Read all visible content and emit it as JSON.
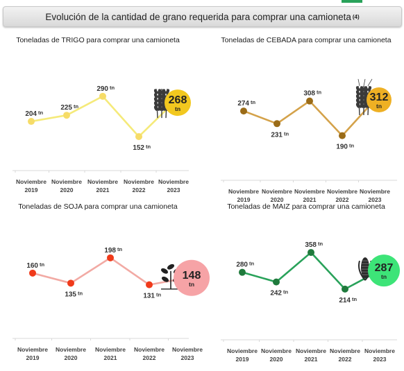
{
  "header": {
    "title": "Evolución de la cantidad de grano requerida para comprar una camioneta",
    "note": "(4)"
  },
  "colors": {
    "trigo_line": "#f5ea7a",
    "trigo_point": "#f6dc68",
    "trigo_badge": "#f2c81f",
    "cebada_line": "#d4a24a",
    "cebada_point": "#9a6b17",
    "cebada_badge": "#eeb024",
    "soja_line": "#f2aaa4",
    "soja_point": "#f03a1a",
    "soja_badge": "#f6a3a6",
    "maiz_line": "#29a25a",
    "maiz_point": "#1f7a3c",
    "maiz_badge": "#3de478"
  },
  "chart_data": [
    {
      "id": "trigo",
      "type": "line",
      "title": "Toneladas de TRIGO para comprar una camioneta",
      "categories": [
        [
          "Noviembre",
          "2019"
        ],
        [
          "Noviembre",
          "2020"
        ],
        [
          "Noviembre",
          "2021"
        ],
        [
          "Noviembre",
          "2022"
        ],
        [
          "Noviembre",
          "2023"
        ]
      ],
      "values": [
        204,
        225,
        290,
        152,
        268
      ],
      "value_labels": [
        "204",
        "225",
        "290",
        "152",
        "268"
      ],
      "unit": "tn",
      "label_positions": [
        "above",
        "above",
        "above",
        "below",
        "badge"
      ],
      "ylim": [
        140,
        330
      ],
      "icon": "wheat-icon"
    },
    {
      "id": "cebada",
      "type": "line",
      "title": "Toneladas de CEBADA para comprar una camioneta",
      "categories": [
        [
          "Noviembre",
          "2019"
        ],
        [
          "Noviembre",
          "2020"
        ],
        [
          "Noviembre",
          "2021"
        ],
        [
          "Noviembre",
          "2022"
        ],
        [
          "Noviembre",
          "2023"
        ]
      ],
      "values": [
        274,
        231,
        308,
        190,
        312
      ],
      "value_labels": [
        "274",
        "231",
        "308",
        "190",
        "312"
      ],
      "unit": "tn",
      "label_positions": [
        "above",
        "below",
        "above",
        "below",
        "badge"
      ],
      "ylim": [
        175,
        345
      ],
      "icon": "barley-icon"
    },
    {
      "id": "soja",
      "type": "line",
      "title": "Toneladas de SOJA para comprar una camioneta",
      "categories": [
        [
          "Noviembre",
          "2019"
        ],
        [
          "Noviembre",
          "2020"
        ],
        [
          "Noviembre",
          "2021"
        ],
        [
          "Noviembre",
          "2022"
        ],
        [
          "Noviembre",
          "2023"
        ]
      ],
      "values": [
        160,
        135,
        198,
        131,
        148
      ],
      "value_labels": [
        "160",
        "135",
        "198",
        "131",
        "148"
      ],
      "unit": "tn",
      "label_positions": [
        "above",
        "below",
        "above",
        "below",
        "badge"
      ],
      "ylim": [
        120,
        215
      ],
      "icon": "soybean-icon"
    },
    {
      "id": "maiz",
      "type": "line",
      "title": "Toneladas de MAIZ para comprar una camioneta",
      "categories": [
        [
          "Noviembre",
          "2019"
        ],
        [
          "Noviembre",
          "2020"
        ],
        [
          "Noviembre",
          "2021"
        ],
        [
          "Noviembre",
          "2022"
        ],
        [
          "Noviembre",
          "2023"
        ]
      ],
      "values": [
        280,
        242,
        358,
        214,
        287
      ],
      "value_labels": [
        "280",
        "242",
        "358",
        "214",
        "287"
      ],
      "unit": "tn",
      "label_positions": [
        "above",
        "below",
        "above",
        "below",
        "badge"
      ],
      "ylim": [
        200,
        380
      ],
      "icon": "corn-icon"
    }
  ]
}
